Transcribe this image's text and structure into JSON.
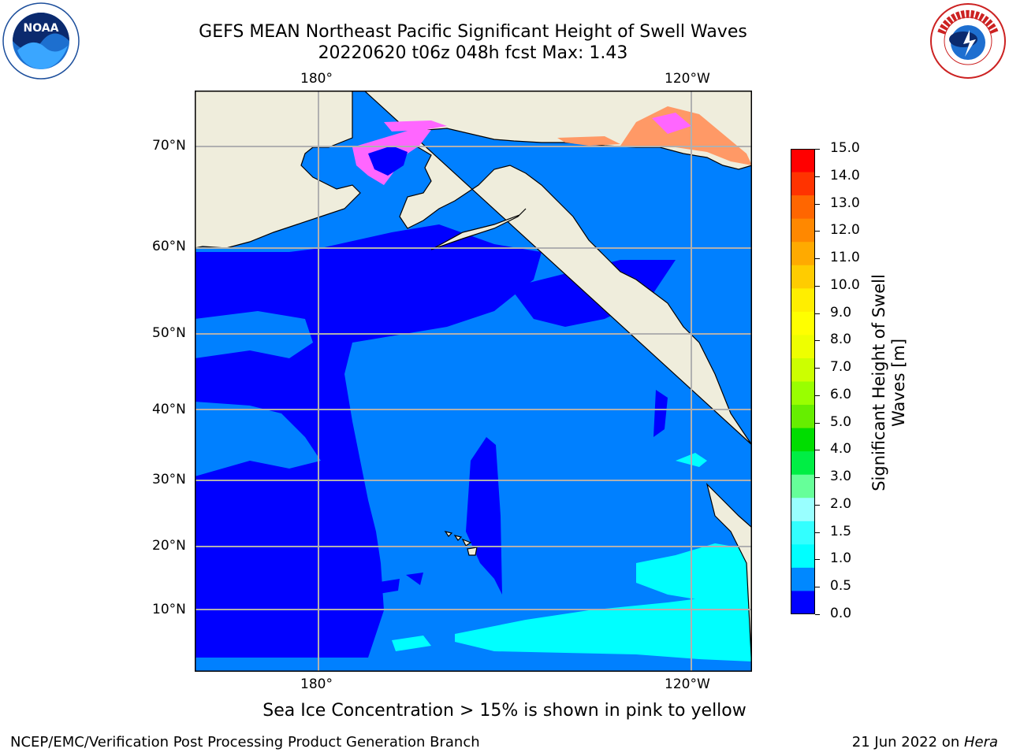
{
  "header": {
    "title_line1": "GEFS MEAN Northeast Pacific Significant Height of Swell Waves",
    "title_line2": "20220620 t06z 048h fcst   Max: 1.43"
  },
  "logos": {
    "left_name": "NOAA",
    "right_name": "NATIONAL WEATHER SERVICE"
  },
  "map": {
    "lon_labels_top": [
      "180°",
      "120°W"
    ],
    "lon_labels_bottom": [
      "180°",
      "120°W"
    ],
    "lat_labels": [
      "70°N",
      "60°N",
      "50°N",
      "40°N",
      "30°N",
      "20°N",
      "10°N"
    ],
    "colors": {
      "land": "#efeddc",
      "ocean_1_0": "#0080ff",
      "ocean_0_5": "#0000ff",
      "ocean_1_5": "#00ffff",
      "ice_pink": "#ff66ff",
      "ice_orange": "#ff9966",
      "grid": "#b0b0b0"
    }
  },
  "colorbar": {
    "label_line1": "Significant Height of Swell",
    "label_line2": "Waves [m]",
    "ticks": [
      "15.0",
      "14.0",
      "13.0",
      "12.0",
      "11.0",
      "10.0",
      "9.0",
      "8.0",
      "7.0",
      "6.0",
      "5.0",
      "4.0",
      "3.0",
      "2.0",
      "1.5",
      "1.0",
      "0.5",
      "0.0"
    ],
    "colors": [
      "#ff0000",
      "#ff3300",
      "#ff6600",
      "#ff8800",
      "#ffaa00",
      "#ffcc00",
      "#ffee00",
      "#ffff00",
      "#eeff00",
      "#ccff00",
      "#99ff00",
      "#66ee00",
      "#00dd00",
      "#00ee44",
      "#66ff99",
      "#99ffff",
      "#33ffff",
      "#00ffff",
      "#0088ff",
      "#0000ff"
    ]
  },
  "footer": {
    "note": "Sea Ice Concentration > 15% is shown in pink to yellow",
    "credit": "NCEP/EMC/Verification Post Processing Product Generation Branch",
    "date": "21 Jun 2022 on ",
    "machine": "Hera"
  }
}
